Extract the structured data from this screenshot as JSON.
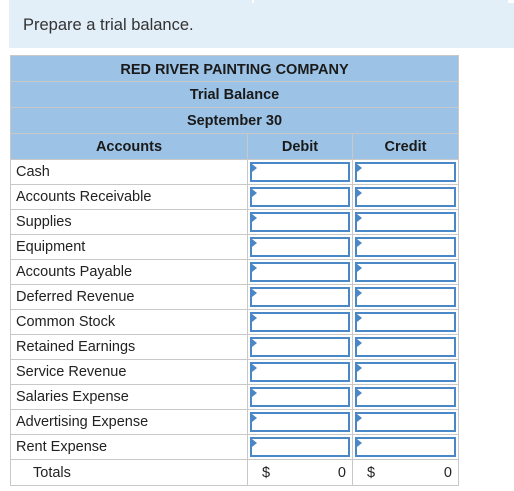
{
  "instruction": "Prepare a trial balance.",
  "header": {
    "company": "RED RIVER PAINTING COMPANY",
    "title": "Trial Balance",
    "date": "September 30"
  },
  "columns": {
    "accounts": "Accounts",
    "debit": "Debit",
    "credit": "Credit"
  },
  "accounts": [
    {
      "name": "Cash",
      "debit": "",
      "credit": ""
    },
    {
      "name": "Accounts Receivable",
      "debit": "",
      "credit": ""
    },
    {
      "name": "Supplies",
      "debit": "",
      "credit": ""
    },
    {
      "name": "Equipment",
      "debit": "",
      "credit": ""
    },
    {
      "name": "Accounts Payable",
      "debit": "",
      "credit": ""
    },
    {
      "name": "Deferred Revenue",
      "debit": "",
      "credit": ""
    },
    {
      "name": "Common Stock",
      "debit": "",
      "credit": ""
    },
    {
      "name": "Retained Earnings",
      "debit": "",
      "credit": ""
    },
    {
      "name": "Service Revenue",
      "debit": "",
      "credit": ""
    },
    {
      "name": "Salaries Expense",
      "debit": "",
      "credit": ""
    },
    {
      "name": "Advertising Expense",
      "debit": "",
      "credit": ""
    },
    {
      "name": "Rent Expense",
      "debit": "",
      "credit": ""
    }
  ],
  "totals": {
    "label": "Totals",
    "debit_currency": "$",
    "debit_value": "0",
    "credit_currency": "$",
    "credit_value": "0"
  },
  "colors": {
    "header_bg": "#9cc3e6",
    "instruction_bg": "#e2eef8",
    "input_border": "#4a87c6"
  }
}
